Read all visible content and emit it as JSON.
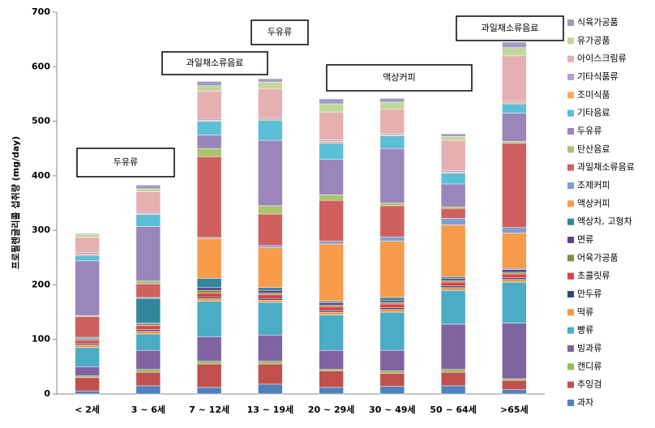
{
  "chart_data": {
    "type": "bar",
    "stacked": true,
    "y_label": "프로필렌글리콜 섭취량 (mg/day)",
    "categories": [
      "< 2세",
      "3 ~ 6세",
      "7 ~ 12세",
      "13 ~ 19세",
      "20 ~ 29세",
      "30 ~ 49세",
      "50 ~ 64세",
      ">65세"
    ],
    "ylim": [
      0,
      700
    ],
    "yticks": [
      0,
      100,
      200,
      300,
      400,
      500,
      600,
      700
    ],
    "legend": "right",
    "annotations": [
      "두유류",
      "과일채소류음료",
      "두유류",
      "액상커피",
      "과일채소류음료"
    ],
    "series": [
      {
        "name": "과자",
        "color": "#4f81bd",
        "values": [
          5,
          15,
          12,
          18,
          12,
          14,
          15,
          8
        ]
      },
      {
        "name": "추잉검",
        "color": "#c0504d",
        "values": [
          25,
          25,
          43,
          37,
          30,
          24,
          25,
          17
        ]
      },
      {
        "name": "캔디류",
        "color": "#9bbb59",
        "values": [
          3,
          5,
          5,
          5,
          3,
          4,
          5,
          3
        ]
      },
      {
        "name": "빙과류",
        "color": "#8064a2",
        "values": [
          17,
          35,
          45,
          48,
          35,
          38,
          83,
          102
        ]
      },
      {
        "name": "빵류",
        "color": "#4bacc6",
        "values": [
          35,
          30,
          65,
          60,
          65,
          70,
          62,
          75
        ]
      },
      {
        "name": "떡류",
        "color": "#f79646",
        "values": [
          5,
          5,
          5,
          4,
          5,
          5,
          5,
          5
        ]
      },
      {
        "name": "만두류",
        "color": "#2c4d75",
        "values": [
          3,
          3,
          3,
          3,
          3,
          3,
          3,
          3
        ]
      },
      {
        "name": "초콜릿류",
        "color": "#e04040",
        "values": [
          5,
          7,
          7,
          7,
          7,
          7,
          7,
          7
        ]
      },
      {
        "name": "어육가공품",
        "color": "#77933c",
        "values": [
          2,
          3,
          5,
          3,
          3,
          3,
          3,
          3
        ]
      },
      {
        "name": "면류",
        "color": "#5f3f8f",
        "values": [
          2,
          2,
          5,
          5,
          4,
          4,
          4,
          5
        ]
      },
      {
        "name": "액상차, 고형차",
        "color": "#31859c",
        "values": [
          2,
          45,
          17,
          5,
          3,
          5,
          3,
          2
        ]
      },
      {
        "name": "액상커피",
        "color": "#f89b4a",
        "values": [
          0,
          0,
          73,
          73,
          105,
          103,
          95,
          65
        ]
      },
      {
        "name": "조제커피",
        "color": "#7f9fd0",
        "values": [
          0,
          2,
          2,
          4,
          5,
          8,
          12,
          10
        ]
      },
      {
        "name": "과일채소류음료",
        "color": "#d06060",
        "values": [
          38,
          25,
          148,
          58,
          75,
          57,
          18,
          155
        ]
      },
      {
        "name": "탄산음료",
        "color": "#a9c46c",
        "values": [
          2,
          5,
          15,
          15,
          10,
          5,
          3,
          3
        ]
      },
      {
        "name": "두유류",
        "color": "#9a86bb",
        "values": [
          100,
          100,
          25,
          120,
          65,
          100,
          42,
          52
        ]
      },
      {
        "name": "기타음료",
        "color": "#5bbfd8",
        "values": [
          10,
          22,
          25,
          37,
          30,
          23,
          20,
          17
        ]
      },
      {
        "name": "조미식품",
        "color": "#f9a95e",
        "values": [
          2,
          2,
          2,
          3,
          3,
          2,
          2,
          3
        ]
      },
      {
        "name": "기타식품류",
        "color": "#b3a2d3",
        "values": [
          3,
          3,
          3,
          3,
          3,
          3,
          3,
          3
        ]
      },
      {
        "name": "아이스크림류",
        "color": "#e6b0b0",
        "values": [
          28,
          37,
          50,
          52,
          51,
          44,
          55,
          82
        ]
      },
      {
        "name": "유가공품",
        "color": "#c4d79b",
        "values": [
          5,
          5,
          10,
          12,
          15,
          13,
          7,
          15
        ]
      },
      {
        "name": "식육가공품",
        "color": "#a09cc0",
        "values": [
          2,
          7,
          8,
          6,
          9,
          7,
          5,
          10
        ]
      }
    ]
  }
}
